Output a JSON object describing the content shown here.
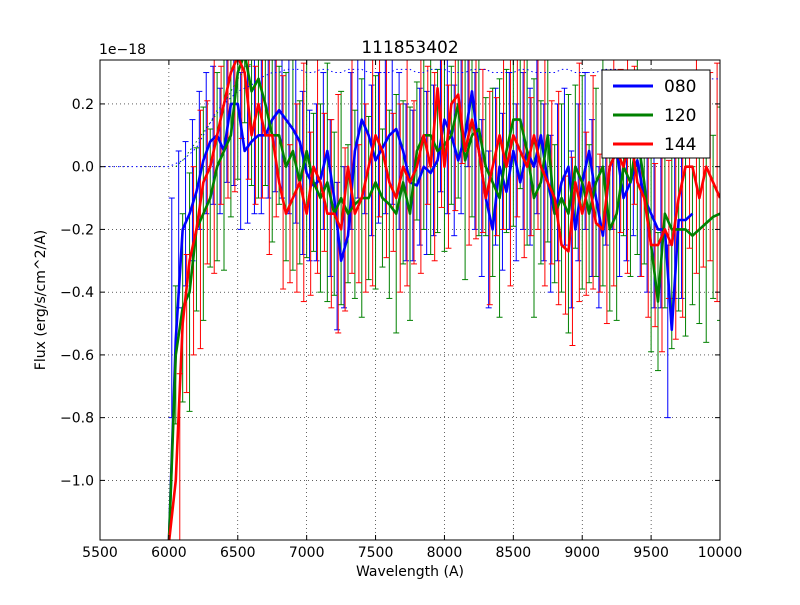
{
  "chart_data": {
    "type": "line",
    "title": "111853402",
    "xlabel": "Wavelength (A)",
    "ylabel": "Flux (erg/s/cm^2/A)",
    "y_multiplier": "1e−18",
    "xlim": [
      5500,
      10000
    ],
    "ylim": [
      -1.19,
      0.34
    ],
    "x_ticks": [
      5500,
      6000,
      6500,
      7000,
      7500,
      8000,
      8500,
      9000,
      9500,
      10000
    ],
    "y_ticks": [
      0.2,
      0.0,
      -0.2,
      -0.4,
      -0.6,
      -0.8,
      -1.0
    ],
    "y_tick_labels": [
      "0.2",
      "0.0",
      "−0.2",
      "−0.4",
      "−0.6",
      "−0.8",
      "−1.0"
    ],
    "grid": true,
    "legend": "top-right",
    "series": [
      {
        "name": "080",
        "color": "#0000ff",
        "x": [
          6000,
          6050,
          6100,
          6150,
          6200,
          6250,
          6300,
          6350,
          6400,
          6450,
          6500,
          6550,
          6600,
          6650,
          6700,
          6750,
          6800,
          6850,
          6900,
          6950,
          7000,
          7050,
          7100,
          7150,
          7200,
          7250,
          7300,
          7350,
          7400,
          7450,
          7500,
          7550,
          7600,
          7650,
          7700,
          7750,
          7800,
          7850,
          7900,
          7950,
          8000,
          8050,
          8100,
          8150,
          8200,
          8250,
          8300,
          8350,
          8400,
          8450,
          8500,
          8550,
          8600,
          8650,
          8700,
          8750,
          8800,
          8850,
          8900,
          8950,
          9000,
          9050,
          9100,
          9150,
          9200,
          9250,
          9300,
          9350,
          9400,
          9450,
          9500,
          9550,
          9600,
          9650,
          9700,
          9750,
          9800
        ],
        "y": [
          -1.2,
          -0.55,
          -0.2,
          -0.15,
          -0.08,
          0.02,
          0.08,
          0.1,
          0.05,
          0.2,
          0.2,
          0.05,
          0.08,
          0.1,
          0.1,
          0.15,
          0.18,
          0.15,
          0.12,
          0.08,
          -0.02,
          -0.06,
          -0.04,
          0.05,
          -0.1,
          -0.3,
          -0.22,
          0.05,
          0.15,
          0.1,
          0.02,
          0.06,
          0.1,
          0.12,
          0.05,
          -0.05,
          -0.06,
          0.0,
          -0.02,
          0.02,
          0.15,
          0.1,
          0.02,
          0.1,
          0.24,
          0.05,
          -0.1,
          -0.2,
          0.0,
          -0.08,
          0.05,
          -0.05,
          0.05,
          0.0,
          0.1,
          -0.05,
          -0.15,
          -0.05,
          0.0,
          -0.2,
          -0.05,
          0.05,
          -0.1,
          -0.22,
          0.0,
          0.05,
          -0.1,
          -0.05,
          0.02,
          -0.1,
          -0.15,
          -0.2,
          -0.2,
          -0.52,
          -0.17,
          -0.17,
          -0.15
        ],
        "err_x": [
          6050,
          6100,
          6150,
          6200,
          6250,
          6300,
          6350,
          6400,
          6450,
          6500,
          6550,
          6600,
          6650,
          6700,
          6750,
          6800,
          6850,
          6900,
          6950,
          7000,
          7050,
          7100,
          7150,
          7200,
          7250,
          7300,
          7350,
          7400,
          7450,
          7500,
          7550,
          7600,
          7650,
          7700,
          7750,
          7800,
          7850,
          7900,
          7950,
          8000,
          8050,
          8100,
          8150,
          8200,
          8250,
          8300,
          8350,
          8400,
          8450,
          8500,
          8550,
          8600,
          8650,
          8700,
          8750,
          8800,
          8850,
          8900,
          8950,
          9000,
          9050,
          9100,
          9150,
          9200,
          9250,
          9300,
          9350,
          9400,
          9450,
          9500,
          9550,
          9600,
          9650,
          9700,
          9750
        ],
        "err_lo": [
          -0.8,
          -0.45,
          -0.38,
          -0.3,
          -0.2,
          -0.15,
          -0.12,
          -0.15,
          -0.05,
          -0.06,
          -0.2,
          -0.18,
          -0.15,
          -0.15,
          -0.1,
          -0.08,
          -0.1,
          -0.15,
          -0.18,
          -0.28,
          -0.3,
          -0.3,
          -0.2,
          -0.35,
          -0.52,
          -0.45,
          -0.2,
          -0.1,
          -0.15,
          -0.22,
          -0.18,
          -0.15,
          -0.12,
          -0.2,
          -0.3,
          -0.3,
          -0.25,
          -0.28,
          -0.22,
          -0.08,
          -0.15,
          -0.22,
          -0.15,
          0.0,
          -0.2,
          -0.35,
          -0.45,
          -0.25,
          -0.33,
          -0.2,
          -0.3,
          -0.2,
          -0.25,
          -0.15,
          -0.3,
          -0.4,
          -0.3,
          -0.25,
          -0.45,
          -0.3,
          -0.2,
          -0.35,
          -0.45,
          -0.25,
          -0.2,
          -0.35,
          -0.3,
          -0.22,
          -0.35,
          -0.4,
          -0.45,
          -0.45,
          -0.8,
          -0.42,
          -0.42
        ],
        "err_hi": [
          -0.1,
          0.05,
          0.08,
          0.15,
          0.24,
          0.3,
          0.32,
          0.25,
          0.34,
          0.34,
          0.3,
          0.32,
          0.34,
          0.34,
          0.34,
          0.34,
          0.34,
          0.34,
          0.34,
          0.24,
          0.18,
          0.2,
          0.3,
          0.15,
          -0.05,
          0.0,
          0.3,
          0.34,
          0.34,
          0.26,
          0.3,
          0.34,
          0.34,
          0.3,
          0.2,
          0.18,
          0.25,
          0.24,
          0.26,
          0.34,
          0.34,
          0.26,
          0.34,
          0.34,
          0.3,
          0.15,
          0.05,
          0.25,
          0.17,
          0.3,
          0.2,
          0.3,
          0.25,
          0.34,
          0.2,
          0.1,
          0.2,
          0.25,
          0.05,
          0.2,
          0.3,
          0.15,
          0.0,
          0.25,
          0.3,
          0.15,
          0.2,
          0.27,
          0.15,
          0.1,
          0.05,
          0.05,
          -0.25,
          0.08,
          0.08
        ]
      },
      {
        "name": "120",
        "color": "#008000",
        "x": [
          6000,
          6050,
          6100,
          6150,
          6200,
          6250,
          6300,
          6350,
          6400,
          6450,
          6500,
          6550,
          6600,
          6650,
          6700,
          6750,
          6800,
          6850,
          6900,
          6950,
          7000,
          7050,
          7100,
          7150,
          7200,
          7250,
          7300,
          7350,
          7400,
          7450,
          7500,
          7550,
          7600,
          7650,
          7700,
          7750,
          7800,
          7850,
          7900,
          7950,
          8000,
          8050,
          8100,
          8150,
          8200,
          8250,
          8300,
          8350,
          8400,
          8450,
          8500,
          8550,
          8600,
          8650,
          8700,
          8750,
          8800,
          8850,
          8900,
          8950,
          9000,
          9050,
          9100,
          9150,
          9200,
          9250,
          9300,
          9350,
          9400,
          9450,
          9500,
          9550,
          9600,
          9650,
          9700,
          9750,
          9800,
          9850,
          9900,
          9950,
          10000
        ],
        "y": [
          -1.2,
          -0.6,
          -0.45,
          -0.4,
          -0.2,
          -0.15,
          -0.1,
          0.0,
          0.05,
          0.1,
          0.3,
          0.36,
          0.24,
          0.28,
          0.2,
          0.1,
          0.1,
          0.0,
          0.05,
          -0.05,
          0.05,
          -0.05,
          -0.1,
          -0.05,
          -0.15,
          -0.1,
          -0.15,
          -0.12,
          -0.1,
          -0.1,
          -0.05,
          -0.1,
          -0.12,
          -0.15,
          -0.05,
          -0.15,
          0.05,
          0.1,
          0.1,
          0.05,
          0.07,
          0.1,
          0.2,
          0.02,
          0.1,
          0.12,
          0.0,
          -0.05,
          -0.1,
          0.05,
          0.15,
          0.15,
          0.05,
          -0.1,
          -0.05,
          0.1,
          -0.15,
          -0.1,
          -0.15,
          0.0,
          -0.05,
          -0.15,
          -0.05,
          0.0,
          -0.2,
          -0.15,
          0.0,
          -0.05,
          0.1,
          -0.05,
          -0.25,
          -0.43,
          -0.15,
          -0.2,
          -0.2,
          -0.2,
          -0.22,
          -0.2,
          -0.18,
          -0.16,
          -0.15
        ]
      },
      {
        "name": "144",
        "color": "#ff0000",
        "x": [
          6000,
          6050,
          6100,
          6150,
          6200,
          6250,
          6300,
          6350,
          6400,
          6450,
          6500,
          6550,
          6600,
          6650,
          6700,
          6750,
          6800,
          6850,
          6900,
          6950,
          7000,
          7050,
          7100,
          7150,
          7200,
          7250,
          7300,
          7350,
          7400,
          7450,
          7500,
          7550,
          7600,
          7650,
          7700,
          7750,
          7800,
          7850,
          7900,
          7950,
          8000,
          8050,
          8100,
          8150,
          8200,
          8250,
          8300,
          8350,
          8400,
          8450,
          8500,
          8550,
          8600,
          8650,
          8700,
          8750,
          8800,
          8850,
          8900,
          8950,
          9000,
          9050,
          9100,
          9150,
          9200,
          9250,
          9300,
          9350,
          9400,
          9450,
          9500,
          9550,
          9600,
          9650,
          9700,
          9750,
          9800,
          9850,
          9900,
          9950,
          10000
        ],
        "y": [
          -1.2,
          -1.0,
          -0.5,
          -0.3,
          -0.2,
          -0.05,
          0.0,
          0.1,
          0.2,
          0.3,
          0.35,
          0.3,
          0.1,
          0.2,
          0.1,
          0.1,
          -0.05,
          -0.15,
          -0.1,
          -0.05,
          -0.15,
          0.0,
          -0.05,
          -0.15,
          -0.15,
          -0.2,
          0.0,
          -0.15,
          -0.1,
          0.0,
          0.1,
          0.05,
          -0.05,
          -0.1,
          0.0,
          -0.05,
          0.0,
          0.1,
          0.0,
          0.25,
          0.0,
          0.2,
          0.23,
          0.05,
          0.15,
          0.05,
          -0.1,
          0.0,
          0.1,
          0.0,
          0.1,
          0.05,
          0.0,
          0.1,
          0.0,
          -0.05,
          -0.1,
          -0.25,
          -0.27,
          -0.05,
          -0.15,
          -0.05,
          -0.18,
          -0.2,
          0.0,
          0.05,
          0.0,
          0.1,
          -0.05,
          -0.1,
          -0.25,
          -0.25,
          -0.2,
          -0.25,
          -0.1,
          0.0,
          0.0,
          -0.1,
          0.0,
          -0.05,
          -0.1
        ]
      }
    ],
    "extra_dotted_lines": [
      {
        "color": "#0000ff",
        "x": [
          5500,
          6000,
          6050,
          6100,
          6150,
          6200,
          6250,
          6300,
          6350,
          6400,
          6450,
          6500,
          6550,
          6600,
          6650,
          6700,
          6750,
          6800,
          6850,
          6900,
          6950,
          7000,
          7050,
          7100,
          7150,
          7200,
          7250,
          7300,
          7350,
          7400,
          7450,
          7500,
          7550,
          7600,
          7650,
          7700,
          7750,
          7800,
          7850,
          7900,
          7950,
          8000,
          8050,
          8100,
          8150,
          8200,
          8250,
          8300,
          8350,
          8400,
          8450,
          8500,
          8550,
          8600,
          8650,
          8700,
          8750,
          8800,
          8850,
          8900,
          8950,
          9000,
          9050,
          9100,
          9150,
          9200,
          9250,
          9300,
          9350,
          9400,
          9450,
          9500,
          9550,
          9600,
          9650,
          9700,
          9750,
          9800,
          9850,
          9900,
          9950,
          10000
        ],
        "y": [
          0.0,
          0.0,
          0.01,
          0.02,
          0.04,
          0.06,
          0.1,
          0.14,
          0.18,
          0.2,
          0.22,
          0.24,
          0.25,
          0.26,
          0.28,
          0.29,
          0.3,
          0.3,
          0.31,
          0.31,
          0.31,
          0.3,
          0.3,
          0.31,
          0.31,
          0.3,
          0.3,
          0.31,
          0.31,
          0.31,
          0.3,
          0.3,
          0.3,
          0.3,
          0.31,
          0.31,
          0.31,
          0.3,
          0.3,
          0.31,
          0.31,
          0.31,
          0.3,
          0.3,
          0.3,
          0.31,
          0.31,
          0.31,
          0.3,
          0.3,
          0.3,
          0.3,
          0.31,
          0.31,
          0.3,
          0.3,
          0.3,
          0.3,
          0.31,
          0.31,
          0.3,
          0.3,
          0.3,
          0.3,
          0.31,
          0.31,
          0.31,
          0.3,
          0.3,
          0.29,
          0.3,
          0.3,
          0.29,
          0.28,
          0.29,
          0.29,
          0.3,
          0.29,
          0.29,
          0.28,
          0.28,
          0.28
        ]
      },
      {
        "color": "#008000",
        "x": [
          6050,
          6100,
          6150,
          6200,
          6250,
          6300,
          6350,
          6400,
          6450,
          6500,
          6550,
          6600
        ],
        "y": [
          0.0,
          0.02,
          0.05,
          0.08,
          0.11,
          0.14,
          0.17,
          0.2,
          0.24,
          0.28,
          0.31,
          0.33
        ]
      }
    ]
  }
}
